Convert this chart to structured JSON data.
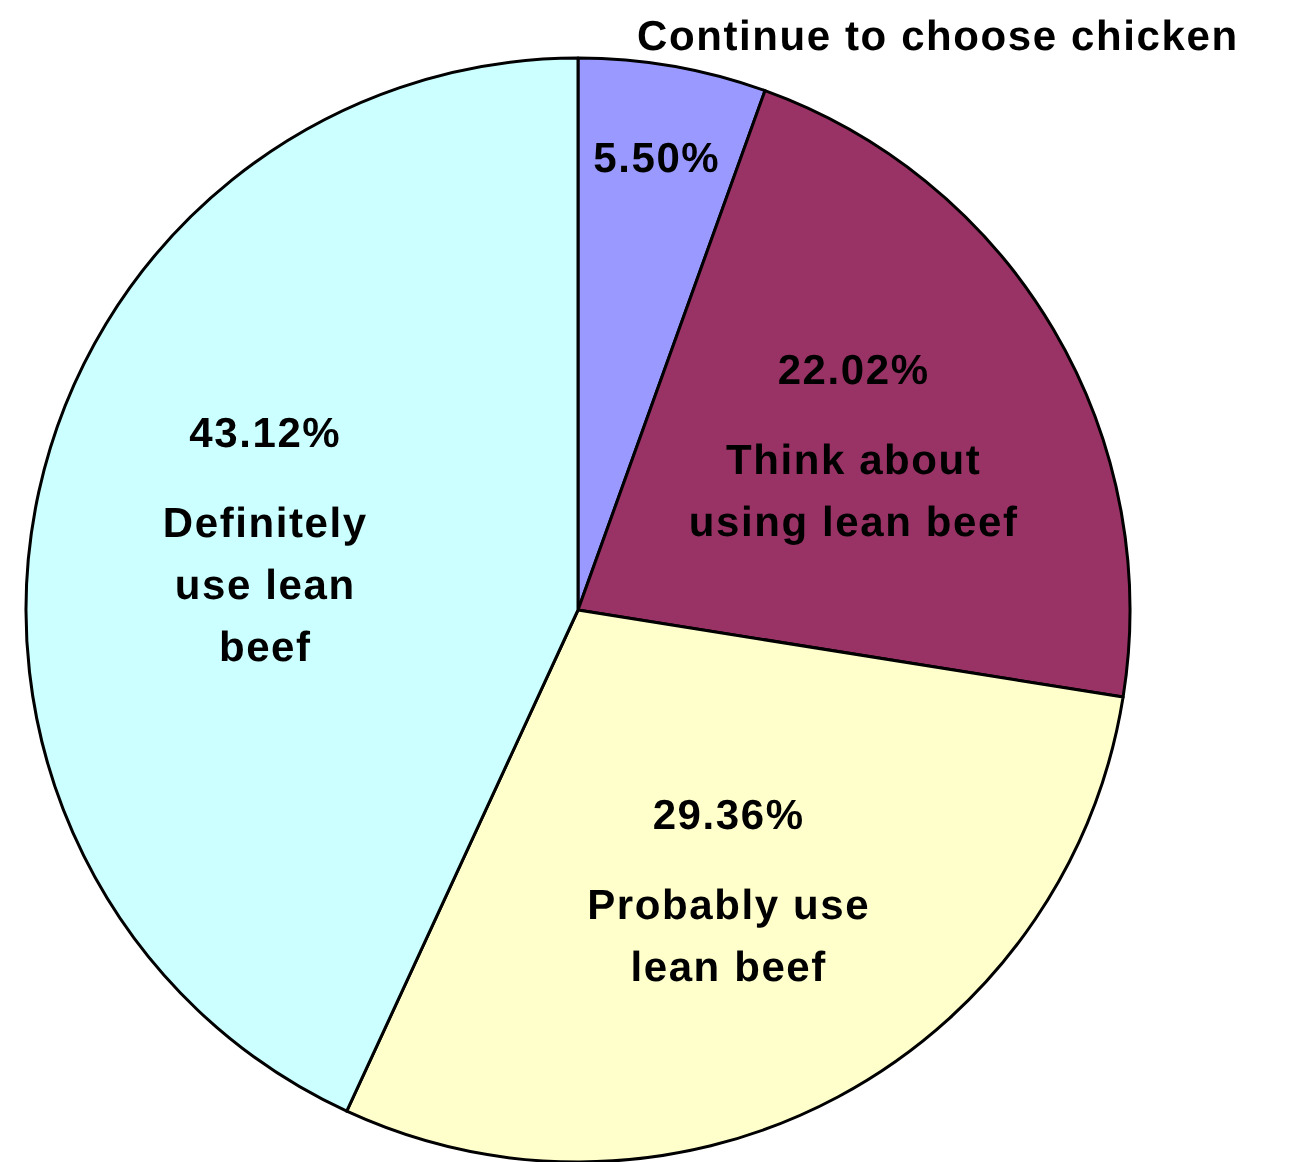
{
  "chart_data": {
    "type": "pie",
    "categories": [
      "Continue to choose chicken",
      "Think about using lean beef",
      "Probably use lean beef",
      "Definitely use lean beef"
    ],
    "values": [
      5.5,
      22.02,
      29.36,
      43.12
    ],
    "colors": [
      "#9999ff",
      "#993366",
      "#ffffcc",
      "#ccffff"
    ],
    "value_labels": [
      "5.50%",
      "22.02%",
      "29.36%",
      "43.12%"
    ]
  }
}
